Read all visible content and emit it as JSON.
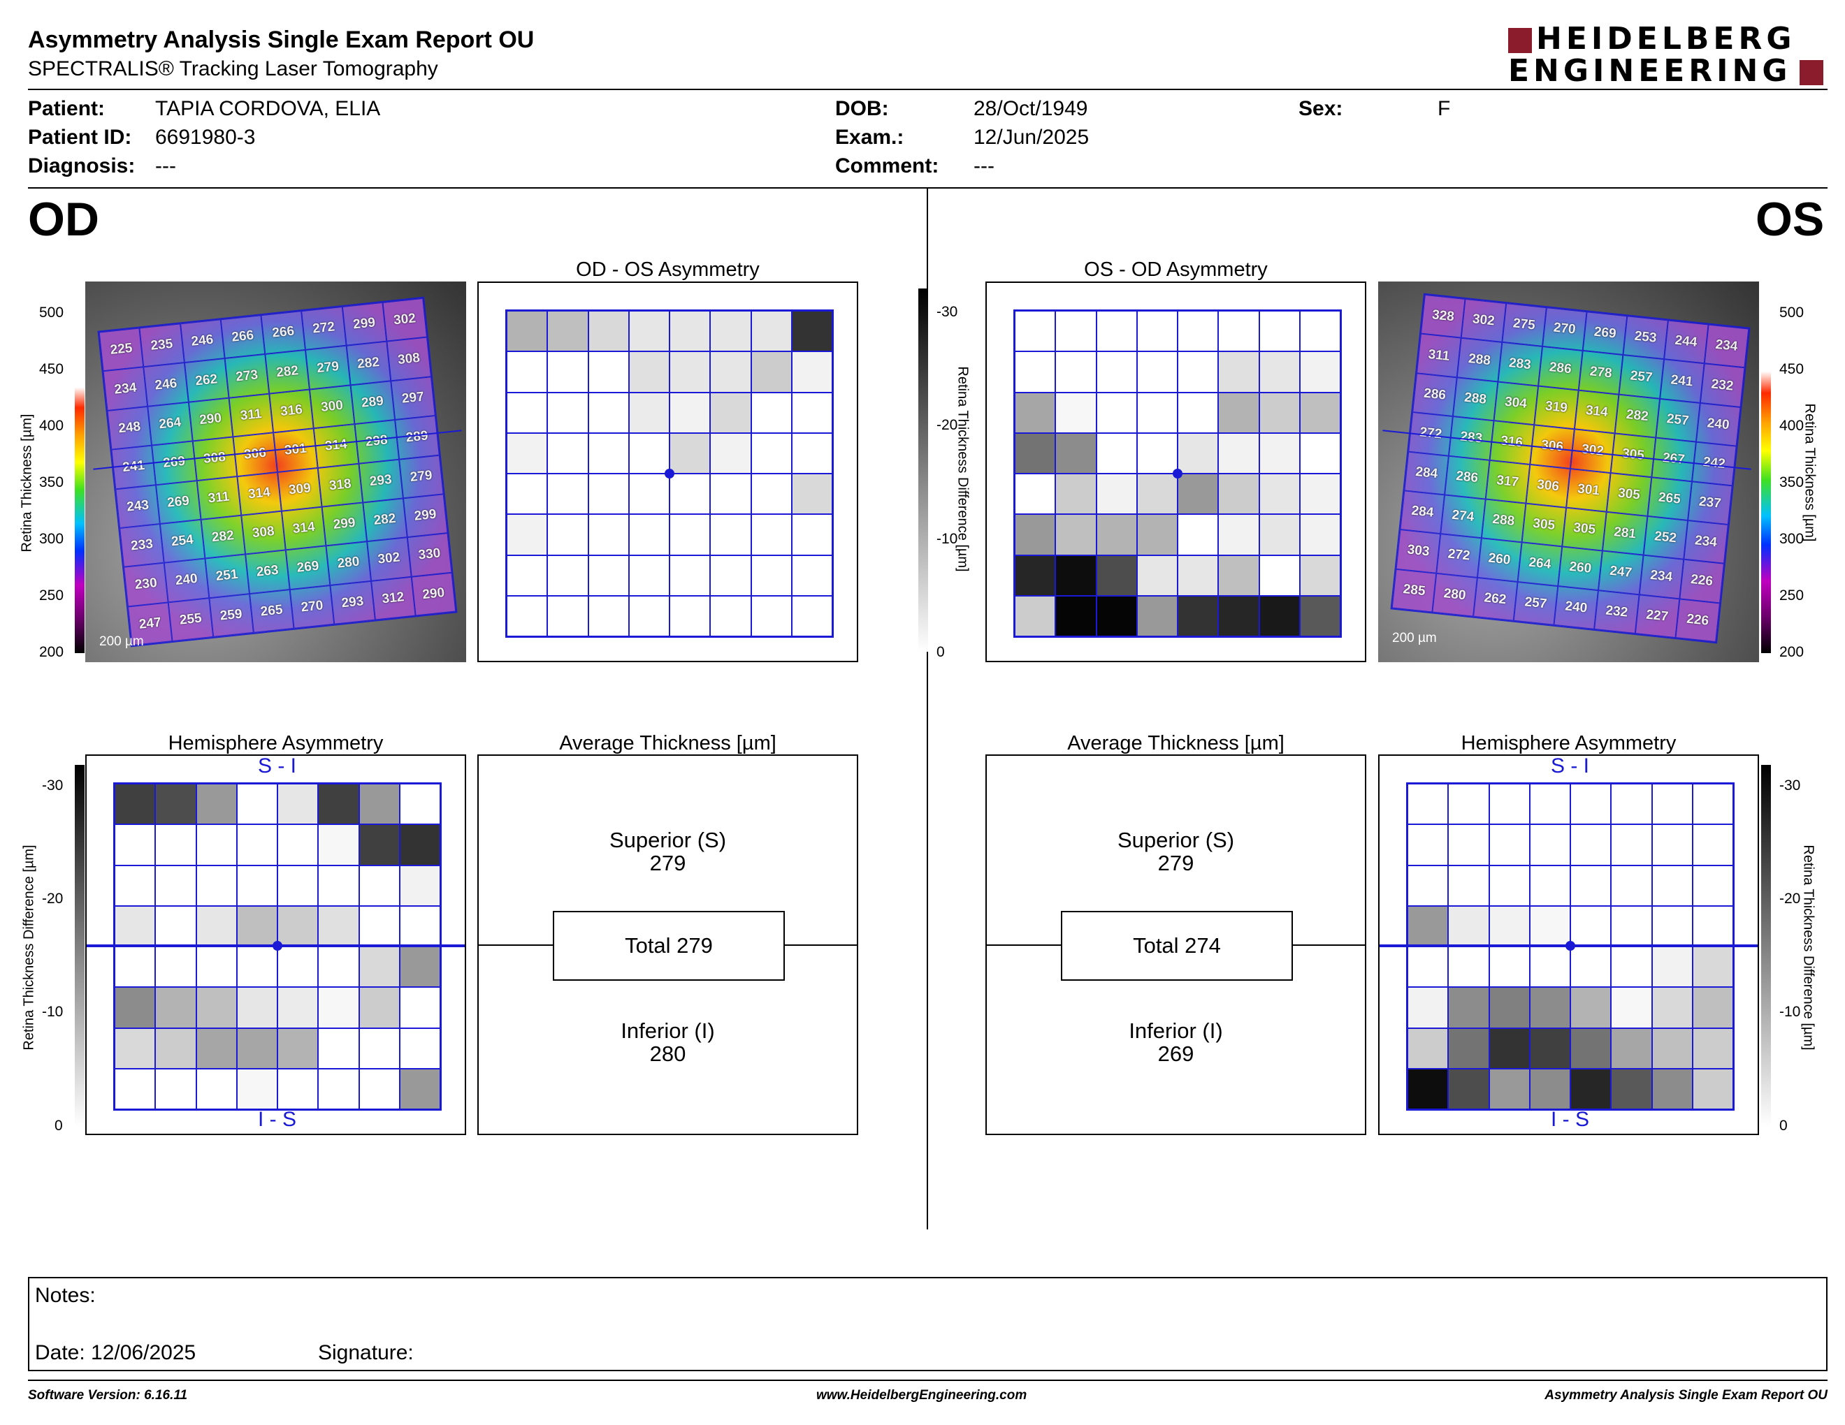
{
  "header": {
    "title": "Asymmetry Analysis Single Exam Report OU",
    "subtitle": "SPECTRALIS® Tracking Laser Tomography",
    "logo_line1": "HEIDELBERG",
    "logo_line2": "ENGINEERING",
    "brand_color": "#8b1c2c"
  },
  "patient": {
    "patient_label": "Patient:",
    "patient_value": "TAPIA CORDOVA, ELIA",
    "id_label": "Patient ID:",
    "id_value": "6691980-3",
    "diagnosis_label": "Diagnosis:",
    "diagnosis_value": "---",
    "dob_label": "DOB:",
    "dob_value": "28/Oct/1949",
    "exam_label": "Exam.:",
    "exam_value": "12/Jun/2025",
    "comment_label": "Comment:",
    "comment_value": "---",
    "sex_label": "Sex:",
    "sex_value": "F"
  },
  "od": {
    "eye_label": "OD",
    "asym_title": "OD - OS Asymmetry",
    "hemi_title": "Hemisphere Asymmetry",
    "avg_title": "Average Thickness [µm]",
    "si_label": "S - I",
    "is_label": "I - S",
    "superior_label": "Superior (S)",
    "superior_value": "279",
    "total_text": "Total 279",
    "inferior_label": "Inferior (I)",
    "inferior_value": "280",
    "scale_text": "200 µm",
    "thickness": [
      [
        225,
        235,
        246,
        266,
        266,
        272,
        299,
        302
      ],
      [
        234,
        246,
        262,
        273,
        282,
        279,
        282,
        308
      ],
      [
        248,
        264,
        290,
        311,
        316,
        300,
        289,
        297
      ],
      [
        241,
        269,
        308,
        306,
        301,
        314,
        298,
        289
      ],
      [
        243,
        269,
        311,
        314,
        309,
        318,
        293,
        279
      ],
      [
        233,
        254,
        282,
        308,
        314,
        299,
        282,
        299
      ],
      [
        230,
        240,
        251,
        263,
        269,
        280,
        302,
        330
      ],
      [
        247,
        255,
        259,
        265,
        270,
        293,
        312,
        290
      ]
    ],
    "asym_gray": [
      [
        0.3,
        0.25,
        0.15,
        0.1,
        0.1,
        0.1,
        0.1,
        0.8
      ],
      [
        0,
        0,
        0,
        0.12,
        0.1,
        0.1,
        0.2,
        0.05
      ],
      [
        0,
        0,
        0,
        0.08,
        0.05,
        0.15,
        0,
        0
      ],
      [
        0.05,
        0,
        0,
        0,
        0.15,
        0.05,
        0,
        0
      ],
      [
        0,
        0,
        0,
        0,
        0,
        0,
        0,
        0.15
      ],
      [
        0.05,
        0,
        0,
        0,
        0,
        0,
        0,
        0
      ],
      [
        0,
        0,
        0,
        0,
        0,
        0,
        0,
        0
      ],
      [
        0,
        0,
        0,
        0,
        0,
        0,
        0,
        0
      ]
    ],
    "hemi_gray": [
      [
        0.75,
        0.7,
        0.4,
        0,
        0.1,
        0.75,
        0.4,
        0
      ],
      [
        0,
        0,
        0,
        0,
        0,
        0.03,
        0.75,
        0.8
      ],
      [
        0,
        0,
        0,
        0,
        0,
        0,
        0,
        0.05
      ],
      [
        0.1,
        0,
        0.1,
        0.25,
        0.2,
        0.12,
        0,
        0
      ],
      [
        0,
        0,
        0,
        0,
        0,
        0,
        0.15,
        0.4
      ],
      [
        0.45,
        0.3,
        0.25,
        0.1,
        0.08,
        0.03,
        0.2,
        0
      ],
      [
        0.15,
        0.2,
        0.35,
        0.35,
        0.3,
        0,
        0,
        0
      ],
      [
        0,
        0,
        0,
        0.03,
        0,
        0,
        0,
        0.4
      ]
    ]
  },
  "os": {
    "eye_label": "OS",
    "asym_title": "OS - OD Asymmetry",
    "hemi_title": "Hemisphere Asymmetry",
    "avg_title": "Average Thickness [µm]",
    "si_label": "S - I",
    "is_label": "I - S",
    "superior_label": "Superior (S)",
    "superior_value": "279",
    "total_text": "Total 274",
    "inferior_label": "Inferior (I)",
    "inferior_value": "269",
    "scale_text": "200 µm",
    "thickness": [
      [
        328,
        302,
        275,
        270,
        269,
        253,
        244,
        234
      ],
      [
        311,
        288,
        283,
        286,
        278,
        257,
        241,
        232
      ],
      [
        286,
        288,
        304,
        319,
        314,
        282,
        257,
        240
      ],
      [
        272,
        283,
        316,
        306,
        302,
        305,
        267,
        242
      ],
      [
        284,
        286,
        317,
        306,
        301,
        305,
        265,
        237
      ],
      [
        284,
        274,
        288,
        305,
        305,
        281,
        252,
        234
      ],
      [
        303,
        272,
        260,
        264,
        260,
        247,
        234,
        226
      ],
      [
        285,
        280,
        262,
        257,
        240,
        232,
        227,
        226
      ]
    ],
    "asym_gray": [
      [
        0,
        0,
        0,
        0,
        0,
        0,
        0,
        0
      ],
      [
        0,
        0,
        0,
        0,
        0,
        0.12,
        0.1,
        0.05
      ],
      [
        0.35,
        0.03,
        0,
        0,
        0,
        0.3,
        0.2,
        0.25
      ],
      [
        0.55,
        0.45,
        0,
        0,
        0.1,
        0.05,
        0.05,
        0
      ],
      [
        0,
        0.2,
        0.05,
        0.15,
        0.4,
        0.2,
        0.1,
        0.05
      ],
      [
        0.4,
        0.25,
        0.3,
        0.3,
        0,
        0.05,
        0.1,
        0.05
      ],
      [
        0.85,
        0.95,
        0.7,
        0.1,
        0.1,
        0.25,
        0,
        0.15
      ],
      [
        0.2,
        0.98,
        0.98,
        0.4,
        0.8,
        0.85,
        0.9,
        0.65
      ]
    ],
    "hemi_gray": [
      [
        0,
        0,
        0,
        0,
        0,
        0,
        0,
        0
      ],
      [
        0,
        0,
        0,
        0,
        0,
        0,
        0,
        0
      ],
      [
        0,
        0,
        0,
        0,
        0,
        0,
        0,
        0
      ],
      [
        0.4,
        0.08,
        0.05,
        0.03,
        0,
        0,
        0,
        0
      ],
      [
        0,
        0,
        0,
        0,
        0,
        0,
        0.05,
        0.15
      ],
      [
        0.05,
        0.45,
        0.5,
        0.45,
        0.3,
        0.03,
        0.15,
        0.25
      ],
      [
        0.2,
        0.55,
        0.8,
        0.75,
        0.55,
        0.35,
        0.25,
        0.2
      ],
      [
        0.95,
        0.7,
        0.4,
        0.45,
        0.85,
        0.65,
        0.45,
        0.2
      ]
    ]
  },
  "scales": {
    "thickness_ticks": [
      "500",
      "450",
      "400",
      "350",
      "300",
      "250",
      "200"
    ],
    "thickness_axis_label": "Retina Thickness [µm]",
    "diff_ticks": [
      "-30",
      "-20",
      "-10",
      "0"
    ],
    "diff_axis_label": "Retina Thickness Difference [µm]"
  },
  "notes": {
    "notes_label": "Notes:",
    "date_label": "Date: 12/06/2025",
    "signature_label": "Signature:"
  },
  "footer": {
    "software": "Software Version: 6.16.11",
    "website": "www.HeidelbergEngineering.com",
    "report_name": "Asymmetry Analysis Single Exam Report OU"
  }
}
